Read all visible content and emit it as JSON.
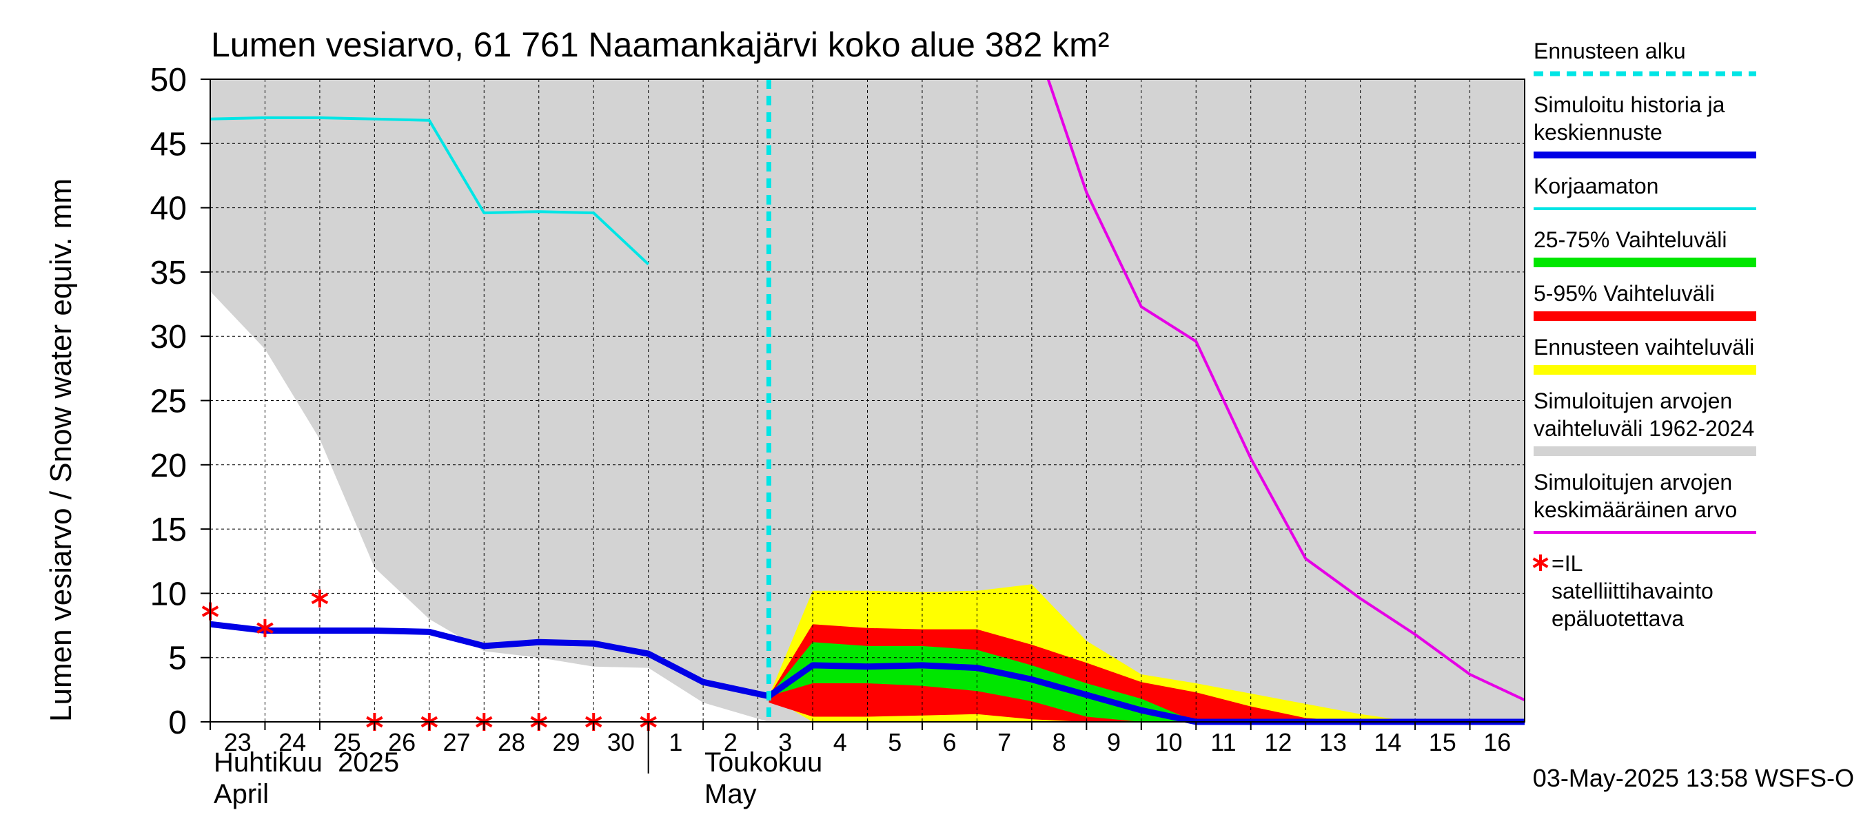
{
  "chart_data": {
    "type": "area",
    "title": "Lumen vesiarvo, 61 761 Naamankajärvi koko alue 382 km²",
    "ylabel": "Lumen vesiarvo / Snow water equiv.    mm",
    "ylim": [
      0,
      50
    ],
    "y_ticks": [
      "0",
      "5",
      "10",
      "15",
      "20",
      "25",
      "30",
      "35",
      "40",
      "45",
      "50"
    ],
    "grid": true,
    "legend_position": "right",
    "x_tick_labels": [
      "23",
      "24",
      "25",
      "26",
      "27",
      "28",
      "29",
      "30",
      "1",
      "2",
      "3",
      "4",
      "5",
      "6",
      "7",
      "8",
      "9",
      "10",
      "11",
      "12",
      "13",
      "14",
      "15",
      "16"
    ],
    "month_labels": {
      "april_fi": "Huhtikuu  2025",
      "april_en": "April",
      "may_fi": "Toukokuu",
      "may_en": "May"
    },
    "timestamp": "03-May-2025 13:58 WSFS-O",
    "forecast_start_x": 10.2,
    "legend": [
      {
        "label": "Ennusteen alku",
        "color": "#00e5e5",
        "style": "dashed"
      },
      {
        "label": "Simuloitu historia ja keskiennuste",
        "color": "#0000e6",
        "style": "thick"
      },
      {
        "label": "Korjaamaton",
        "color": "#00e5e5",
        "style": "line"
      },
      {
        "label": "25-75% Vaihteluväli",
        "color": "#00e600",
        "style": "band"
      },
      {
        "label": "5-95% Vaihteluväli",
        "color": "#ff0000",
        "style": "band"
      },
      {
        "label": "Ennusteen vaihteluväli",
        "color": "#ffff00",
        "style": "band"
      },
      {
        "label": "Simuloitujen arvojen vaihteluväli 1962-2024",
        "color": "#d3d3d3",
        "style": "band"
      },
      {
        "label": "Simuloitujen arvojen keskimääräinen arvo",
        "color": "#e600e6",
        "style": "line"
      },
      {
        "label": "=IL satelliittihavainto epäluotettava",
        "color": "#ff0000",
        "style": "marker"
      }
    ],
    "historical_range_lower": {
      "x": [
        0,
        1,
        2,
        3,
        4,
        5,
        6,
        7,
        8,
        9,
        10.2,
        11,
        12,
        13,
        14,
        15,
        16,
        17,
        18,
        19,
        20,
        21,
        22,
        23,
        24
      ],
      "y": [
        33.5,
        29,
        22,
        12,
        8,
        5.5,
        5,
        4.3,
        4.2,
        1.5,
        0,
        0,
        0,
        0,
        0,
        0,
        0,
        0,
        0,
        0,
        0,
        0,
        0,
        0,
        0
      ]
    },
    "series": [
      {
        "name": "Simuloitu historia ja keskiennuste",
        "color": "#0000e6",
        "x": [
          0,
          1,
          2,
          3,
          4,
          5,
          6,
          7,
          8,
          9,
          10.2,
          11,
          12,
          13,
          14,
          15,
          16,
          17,
          18,
          19,
          20,
          21,
          22,
          23,
          24
        ],
        "y": [
          7.6,
          7.1,
          7.1,
          7.1,
          7.0,
          5.9,
          6.2,
          6.1,
          5.3,
          3.1,
          2.0,
          4.4,
          4.3,
          4.4,
          4.2,
          3.3,
          2.1,
          0.9,
          0,
          0,
          0,
          0,
          0,
          0,
          0
        ]
      },
      {
        "name": "Korjaamaton",
        "color": "#00e5e5",
        "x": [
          0,
          1,
          2,
          3,
          4,
          5,
          6,
          7,
          8
        ],
        "y": [
          46.9,
          47.0,
          47.0,
          46.9,
          46.8,
          39.6,
          39.7,
          39.6,
          35.6
        ]
      },
      {
        "name": "Simuloitujen arvojen keskimääräinen arvo",
        "color": "#e600e6",
        "x": [
          15.3,
          16,
          17,
          18,
          19,
          20,
          21,
          22,
          23,
          24
        ],
        "y": [
          50,
          41.2,
          32.3,
          29.6,
          20.5,
          12.7,
          9.6,
          6.8,
          3.7,
          1.7
        ]
      }
    ],
    "bands": [
      {
        "name": "Ennusteen vaihteluväli",
        "color": "#ffff00",
        "x": [
          10.2,
          11,
          12,
          13,
          14,
          15,
          16,
          17,
          18,
          19,
          20,
          21,
          22
        ],
        "upper": [
          2.0,
          10.2,
          10.2,
          10.1,
          10.2,
          10.7,
          6.3,
          3.7,
          3.0,
          2.2,
          1.4,
          0.6,
          0
        ],
        "lower": [
          2.0,
          0,
          0,
          0,
          0,
          0,
          0,
          0,
          0,
          0,
          0,
          0,
          0
        ]
      },
      {
        "name": "5-95% Vaihteluväli",
        "color": "#ff0000",
        "x": [
          10.2,
          11,
          12,
          13,
          14,
          15,
          16,
          17,
          18,
          19,
          20,
          21
        ],
        "upper": [
          2.0,
          7.6,
          7.3,
          7.2,
          7.2,
          6.0,
          4.6,
          3.1,
          2.3,
          1.2,
          0.3,
          0
        ],
        "lower": [
          1.5,
          0.4,
          0.4,
          0.5,
          0.6,
          0.2,
          0,
          0,
          0,
          0,
          0,
          0
        ]
      },
      {
        "name": "25-75% Vaihteluväli",
        "color": "#00e600",
        "x": [
          10.2,
          11,
          12,
          13,
          14,
          15,
          16,
          17,
          18
        ],
        "upper": [
          2.0,
          6.2,
          5.9,
          5.9,
          5.6,
          4.4,
          3.0,
          1.8,
          0
        ],
        "lower": [
          2.0,
          3.0,
          3.0,
          2.8,
          2.4,
          1.6,
          0.4,
          0,
          0
        ]
      }
    ],
    "markers": {
      "name": "=IL satelliittihavainto epäluotettava",
      "color": "#ff0000",
      "x": [
        0,
        1,
        2,
        3,
        4,
        5,
        6,
        7,
        8
      ],
      "y": [
        8.6,
        7.3,
        9.6,
        0,
        0,
        0,
        0,
        0,
        0
      ]
    }
  }
}
